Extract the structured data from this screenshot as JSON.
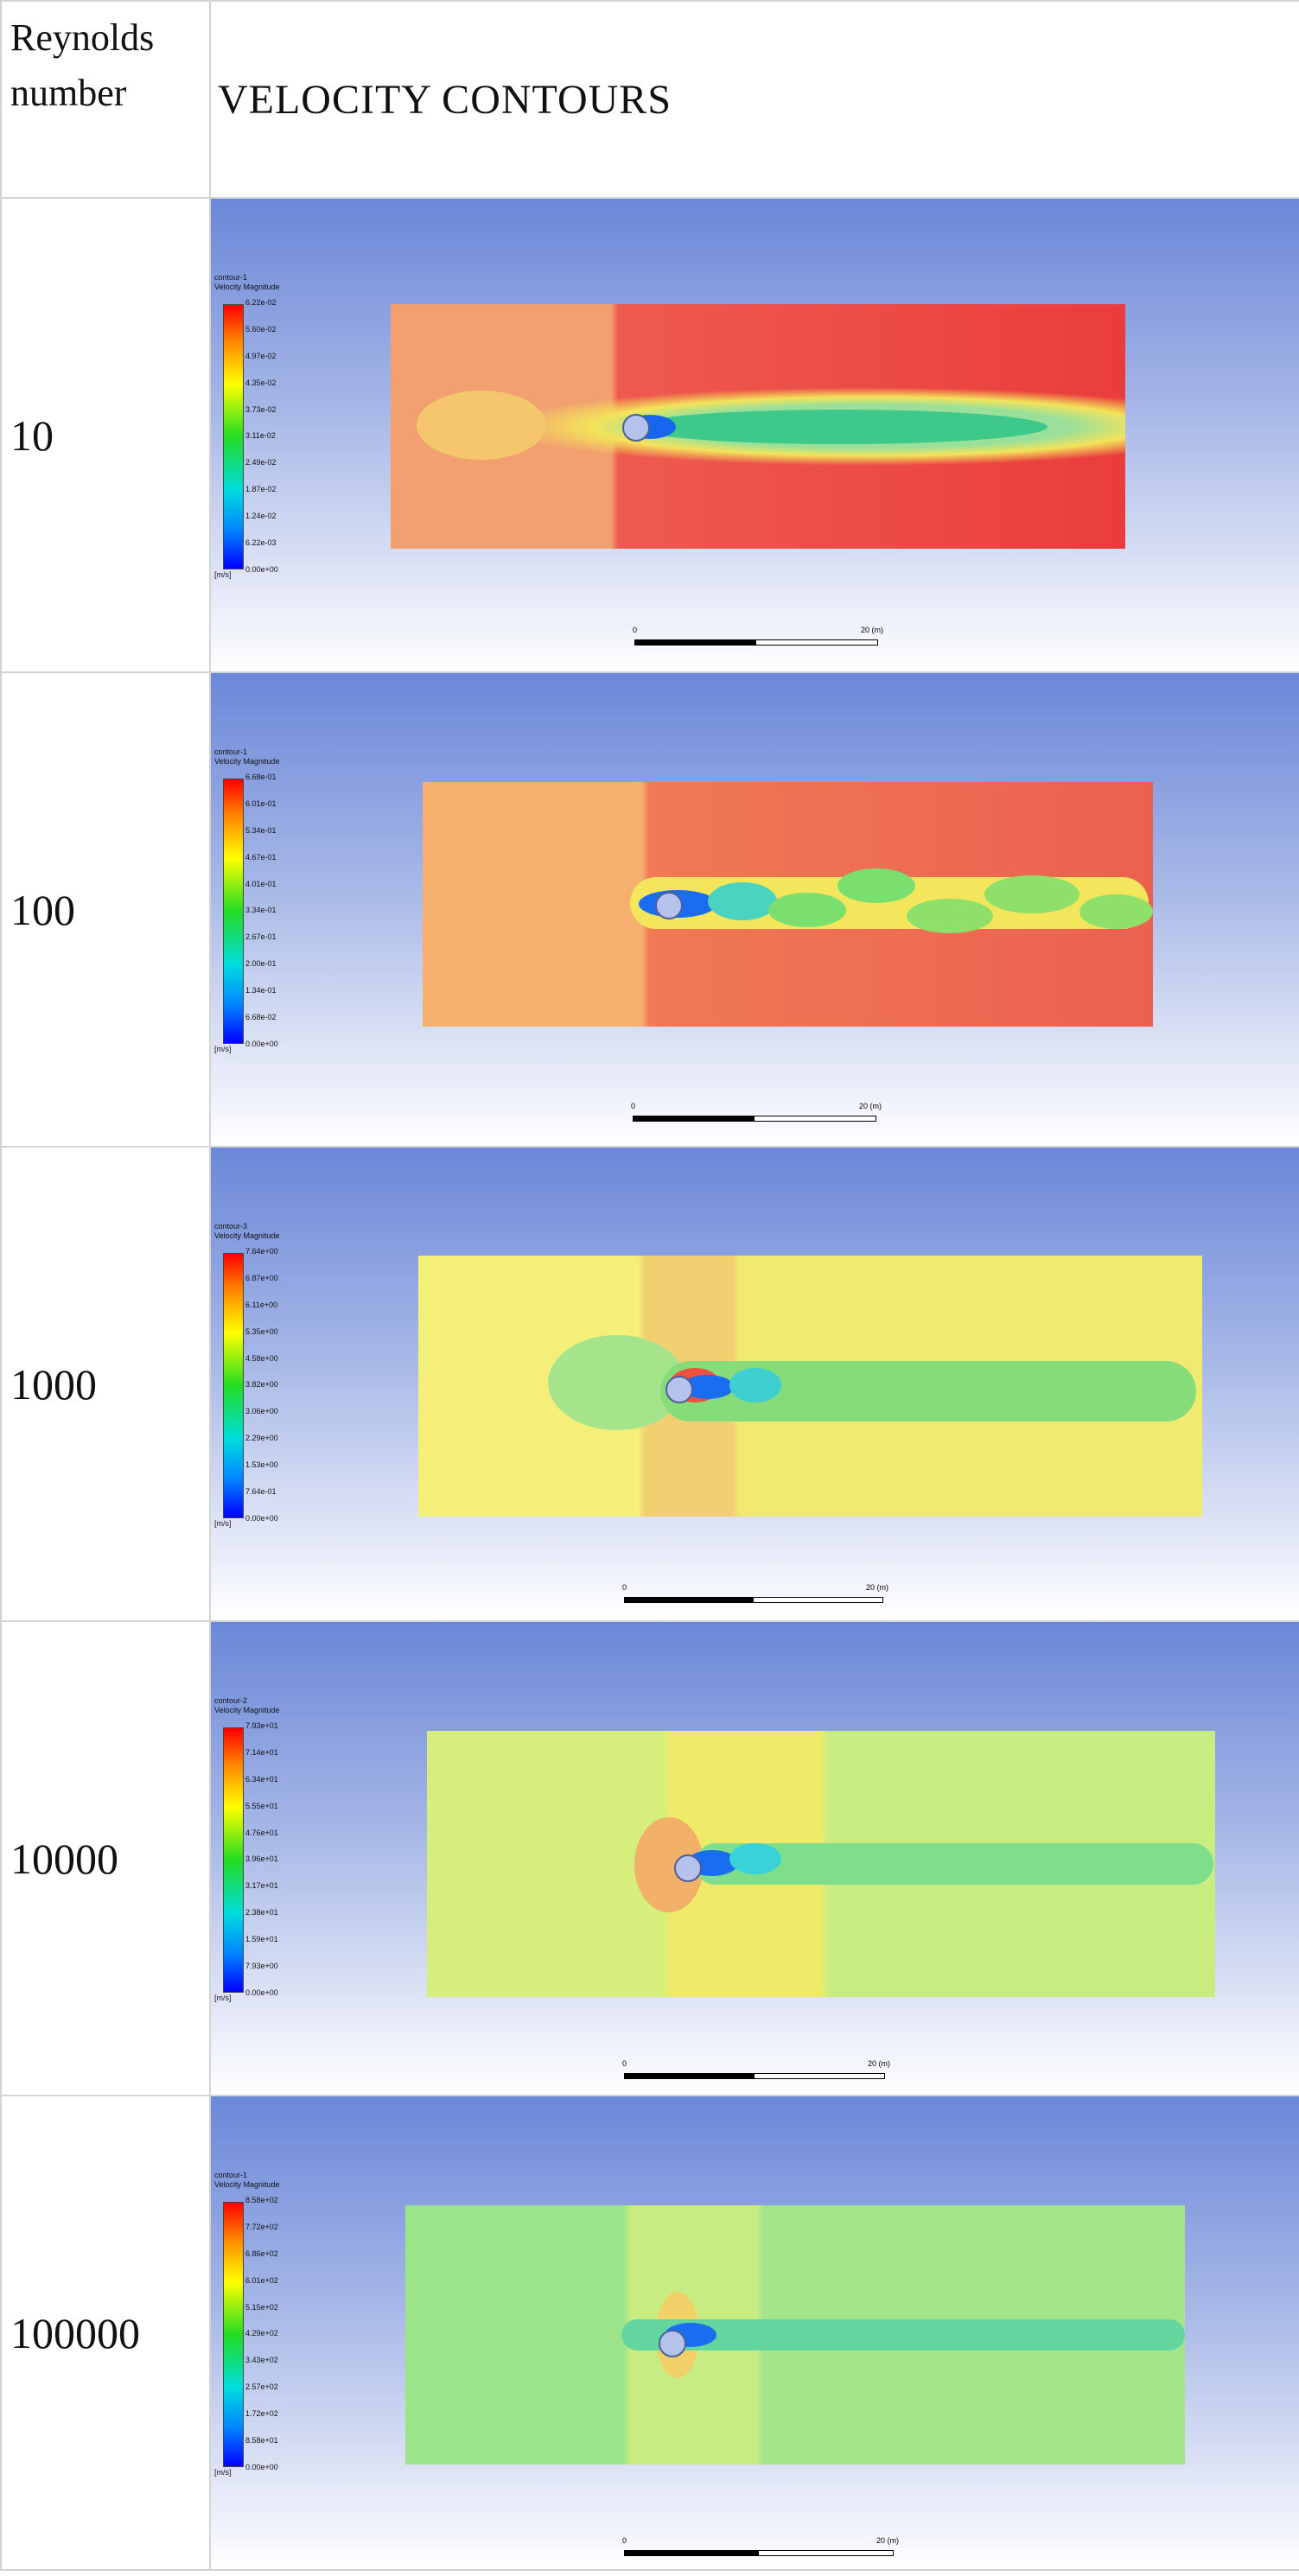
{
  "header": {
    "reynolds_label": "Reynolds number",
    "title": "VELOCITY CONTOURS"
  },
  "rows": [
    {
      "re": "10",
      "legend_title": "contour-1",
      "legend_sub": "Velocity Magnitude",
      "legend_values": [
        "6.22e-02",
        "5.60e-02",
        "4.97e-02",
        "4.35e-02",
        "3.73e-02",
        "3.11e-02",
        "2.49e-02",
        "1.87e-02",
        "1.24e-02",
        "6.22e-03",
        "0.00e+00"
      ],
      "unit": "[m/s]",
      "scale_left": "0",
      "scale_right": "20 (m)"
    },
    {
      "re": "100",
      "legend_title": "contour-1",
      "legend_sub": "Velocity Magnitude",
      "legend_values": [
        "6.68e-01",
        "6.01e-01",
        "5.34e-01",
        "4.67e-01",
        "4.01e-01",
        "3.34e-01",
        "2.67e-01",
        "2.00e-01",
        "1.34e-01",
        "6.68e-02",
        "0.00e+00"
      ],
      "unit": "[m/s]",
      "scale_left": "0",
      "scale_right": "20 (m)"
    },
    {
      "re": "1000",
      "legend_title": "contour-3",
      "legend_sub": "Velocity Magnitude",
      "legend_values": [
        "7.64e+00",
        "6.87e+00",
        "6.11e+00",
        "5.35e+00",
        "4.58e+00",
        "3.82e+00",
        "3.06e+00",
        "2.29e+00",
        "1.53e+00",
        "7.64e-01",
        "0.00e+00"
      ],
      "unit": "[m/s]",
      "scale_left": "0",
      "scale_right": "20 (m)"
    },
    {
      "re": "10000",
      "legend_title": "contour-2",
      "legend_sub": "Velocity Magnitude",
      "legend_values": [
        "7.93e+01",
        "7.14e+01",
        "6.34e+01",
        "5.55e+01",
        "4.76e+01",
        "3.96e+01",
        "3.17e+01",
        "2.38e+01",
        "1.59e+01",
        "7.93e+00",
        "0.00e+00"
      ],
      "unit": "[m/s]",
      "scale_left": "0",
      "scale_right": "20 (m)"
    },
    {
      "re": "100000",
      "legend_title": "contour-1",
      "legend_sub": "Velocity Magnitude",
      "legend_values": [
        "8.58e+02",
        "7.72e+02",
        "6.86e+02",
        "6.01e+02",
        "5.15e+02",
        "4.29e+02",
        "3.43e+02",
        "2.57e+02",
        "1.72e+02",
        "8.58e+01",
        "0.00e+00"
      ],
      "unit": "[m/s]",
      "scale_left": "0",
      "scale_right": "20 (m)"
    }
  ]
}
